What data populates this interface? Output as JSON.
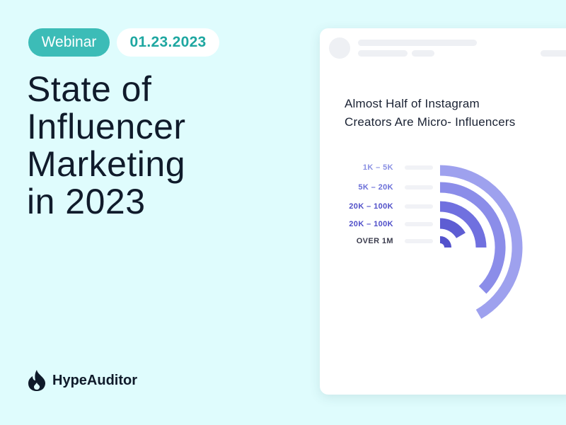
{
  "header": {
    "badge": "Webinar",
    "date": "01.23.2023"
  },
  "headline": {
    "lines": [
      "State of",
      "Influencer",
      "Marketing",
      "in 2023"
    ]
  },
  "brand": {
    "name": "HypeAuditor",
    "icon": "flame-icon"
  },
  "card": {
    "title_lines": [
      "Almost Half of Instagram",
      "Creators Are Micro- Influencers"
    ],
    "ranges": [
      {
        "label": "1K – 5K",
        "color": "#8a90e3"
      },
      {
        "label": "5K – 20K",
        "color": "#6b6fd8"
      },
      {
        "label": "20K – 100K",
        "color": "#5150c8"
      },
      {
        "label": "20K – 100K",
        "color": "#4f4ec9"
      },
      {
        "label": "OVER 1M",
        "color": "#3b3c4d"
      }
    ],
    "arc_colors": [
      "#9ea1ee",
      "#8b8de9",
      "#7070df",
      "#5e5dd3",
      "#5352cc"
    ]
  },
  "colors": {
    "background": "#dffcfd",
    "teal": "#3cbcb7",
    "dark": "#101b2b"
  }
}
